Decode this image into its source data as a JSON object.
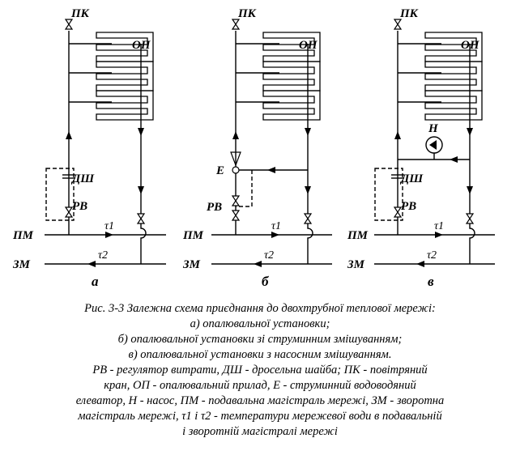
{
  "labels": {
    "pk": "ПК",
    "op": "ОП",
    "dsh": "ДШ",
    "rv": "РВ",
    "e": "Е",
    "h": "Н",
    "pm": "ПМ",
    "zm": "ЗМ",
    "tau1": "τ1",
    "tau2": "τ2"
  },
  "schemes": [
    {
      "letter": "а"
    },
    {
      "letter": "б"
    },
    {
      "letter": "в"
    }
  ],
  "caption": {
    "title": "Рис. 3-3 Залежна схема приєднання до двохтрубної теплової мережі:",
    "item_a": "а) опалювальної установки;",
    "item_b": "б) опалювальної установки зі струминним змішуванням;",
    "item_c": "в) опалювальної установки з насосним змішуванням.",
    "legend_1": "РВ - регулятор витрати, ДШ - дросельна шайба; ПК - повітряний",
    "legend_2": "кран, ОП - опалювальний прилад, Е - струминний водоводяний",
    "legend_3": "елеватор, Н - насос, ПМ - подавальна магістраль мережі, ЗМ - зворотна",
    "legend_4": "магістраль мережі, τ1 і τ2 - температури мережевої води в подавальній",
    "legend_5": "і зворотній магістралі мережі"
  }
}
